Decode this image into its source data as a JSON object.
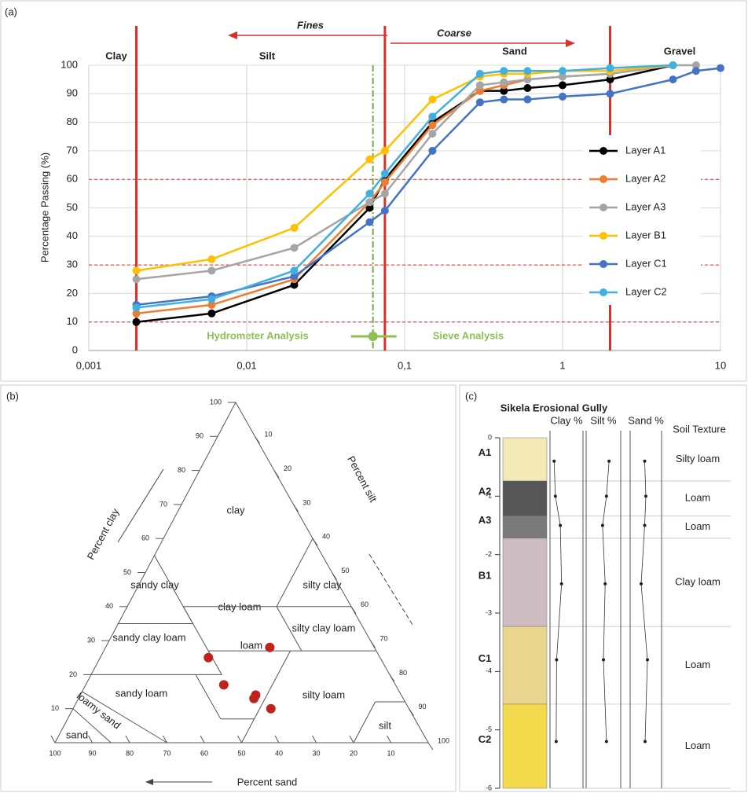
{
  "chart_data": [
    {
      "type": "line",
      "panel_label": "(a)",
      "ylabel": "Percentage Passing (%)",
      "log_x": true,
      "grid": true,
      "x": [
        0.002,
        0.006,
        0.02,
        0.06,
        0.075,
        0.15,
        0.3,
        0.425,
        0.6,
        1,
        2,
        5,
        7,
        10
      ],
      "series": [
        {
          "name": "Layer A1",
          "color": "#000000",
          "values": [
            10,
            13,
            23,
            50,
            60,
            80,
            91,
            91,
            92,
            93,
            95,
            100,
            null,
            null
          ]
        },
        {
          "name": "Layer A2",
          "color": "#ed7d31",
          "values": [
            13,
            16,
            25,
            52,
            59,
            79,
            91,
            93,
            95,
            96,
            97,
            100,
            null,
            null
          ]
        },
        {
          "name": "Layer A3",
          "color": "#a5a5a5",
          "values": [
            25,
            28,
            36,
            52,
            55,
            76,
            93,
            94,
            95,
            96,
            97,
            100,
            100,
            null
          ]
        },
        {
          "name": "Layer B1",
          "color": "#ffc000",
          "values": [
            28,
            32,
            43,
            67,
            70,
            88,
            96,
            97,
            97,
            98,
            98,
            100,
            null,
            null
          ]
        },
        {
          "name": "Layer C1",
          "color": "#4472c4",
          "values": [
            16,
            19,
            26,
            45,
            49,
            70,
            87,
            88,
            88,
            89,
            90,
            95,
            98,
            99
          ]
        },
        {
          "name": "Layer C2",
          "color": "#41b0e0",
          "values": [
            15,
            18,
            28,
            55,
            62,
            82,
            97,
            98,
            98,
            98,
            99,
            100,
            null,
            null
          ]
        }
      ],
      "xlim": [
        0.001,
        10
      ],
      "xticks": [
        {
          "value": 0.001,
          "label": "0,001"
        },
        {
          "value": 0.01,
          "label": "0,01"
        },
        {
          "value": 0.1,
          "label": "0,1"
        },
        1,
        10
      ],
      "ylim": [
        0,
        100
      ],
      "yticks": [
        0,
        10,
        20,
        30,
        40,
        50,
        60,
        70,
        80,
        90,
        100
      ],
      "boundary_lines": [
        0.002,
        0.075,
        2
      ],
      "reference_levels": [
        10,
        30,
        60
      ],
      "split_line": 0.063,
      "regions": [
        "Clay",
        "Silt",
        "Sand",
        "Gravel"
      ],
      "annotations": {
        "fines": "Fines",
        "coarse": "Coarse",
        "hydrometer": "Hydrometer Analysis",
        "sieve": "Sieve Analysis"
      }
    },
    {
      "type": "ternary",
      "panel_label": "(b)",
      "axis_labels": {
        "clay": "Percent clay",
        "silt": "Percent silt",
        "sand": "Percent sand"
      },
      "ticks": [
        10,
        20,
        30,
        40,
        50,
        60,
        70,
        80,
        90,
        100
      ],
      "regions": [
        "clay",
        "silty clay",
        "sandy clay",
        "clay loam",
        "silty clay loam",
        "sandy clay loam",
        "loam",
        "sandy loam",
        "silty loam",
        "loamy sand",
        "sand",
        "silt"
      ],
      "points": {
        "color": "#c0221c",
        "clay": [
          25,
          28,
          17,
          13,
          14,
          10
        ],
        "silt": [
          29,
          44,
          37,
          47,
          47,
          53
        ],
        "sand": [
          46,
          28,
          46,
          40,
          39,
          37
        ]
      }
    },
    {
      "type": "profile",
      "panel_label": "(c)",
      "title": "Sikela Erosional Gully",
      "ylim": [
        0,
        -6
      ],
      "yticks": [
        0,
        -1,
        -2,
        -3,
        -4,
        -5,
        -6
      ],
      "layers": [
        "A1",
        "A2",
        "A3",
        "B1",
        "C1",
        "C2"
      ],
      "layer_top": [
        0,
        -0.74,
        -1.34,
        -1.72,
        -3.23,
        -4.56
      ],
      "layer_bottom": [
        -0.74,
        -1.34,
        -1.72,
        -3.23,
        -4.56,
        -6
      ],
      "layer_colors": [
        "#f3eab8",
        "#565656",
        "#7a7a7a",
        "#cdbcc2",
        "#ead68e",
        "#f3d94c"
      ],
      "sample_depth": [
        -0.4,
        -1.0,
        -1.5,
        -2.5,
        -3.8,
        -5.2
      ],
      "xlim": [
        0,
        80
      ],
      "series": [
        {
          "name": "Clay %",
          "values": [
            10,
            13,
            25,
            28,
            16,
            15
          ]
        },
        {
          "name": "Silt %",
          "values": [
            53,
            47,
            38,
            44,
            40,
            47
          ]
        },
        {
          "name": "Sand %",
          "values": [
            37,
            40,
            37,
            28,
            44,
            38
          ]
        }
      ],
      "texture_header": "Soil Texture",
      "textures": [
        "Silty loam",
        "Loam",
        "Loam",
        "Clay loam",
        "Loam",
        "Loam"
      ]
    }
  ]
}
